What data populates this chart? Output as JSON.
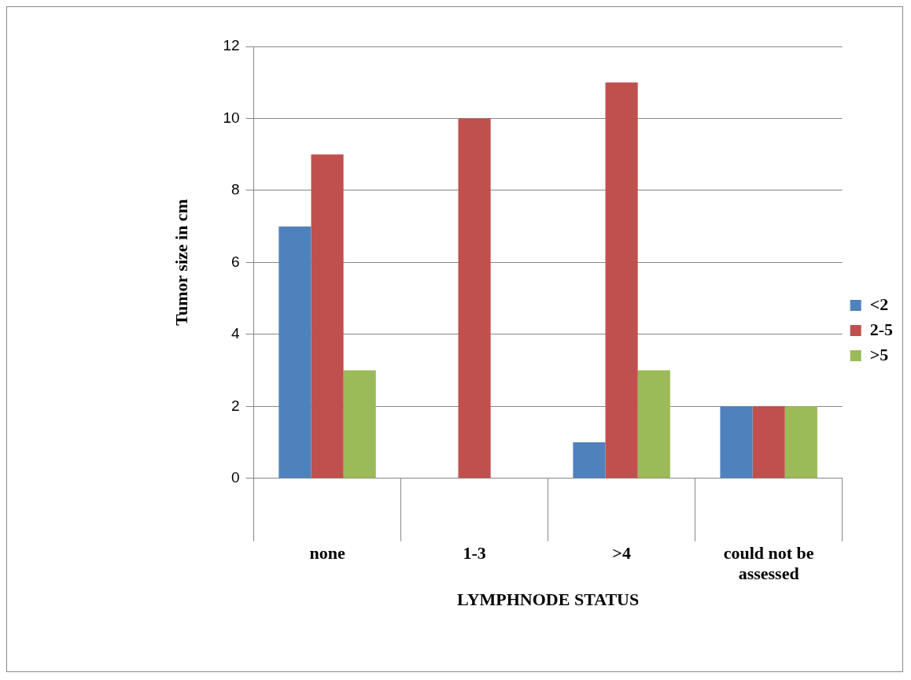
{
  "chart_data": {
    "type": "bar",
    "xlabel": "LYMPHNODE STATUS",
    "ylabel": "Tumor size in cm",
    "categories": [
      "none",
      "1-3",
      ">4",
      "could not be assessed"
    ],
    "series": [
      {
        "name": "<2",
        "color": "#4f81bd",
        "values": [
          7,
          0,
          1,
          2
        ]
      },
      {
        "name": "2-5",
        "color": "#c0504d",
        "values": [
          9,
          10,
          11,
          2
        ]
      },
      {
        "name": ">5",
        "color": "#9bbb59",
        "values": [
          3,
          0,
          3,
          2
        ]
      }
    ],
    "ylim": [
      0,
      12
    ],
    "yticks": [
      0,
      2,
      4,
      6,
      8,
      10,
      12
    ],
    "grid": "y",
    "legend": "right"
  }
}
